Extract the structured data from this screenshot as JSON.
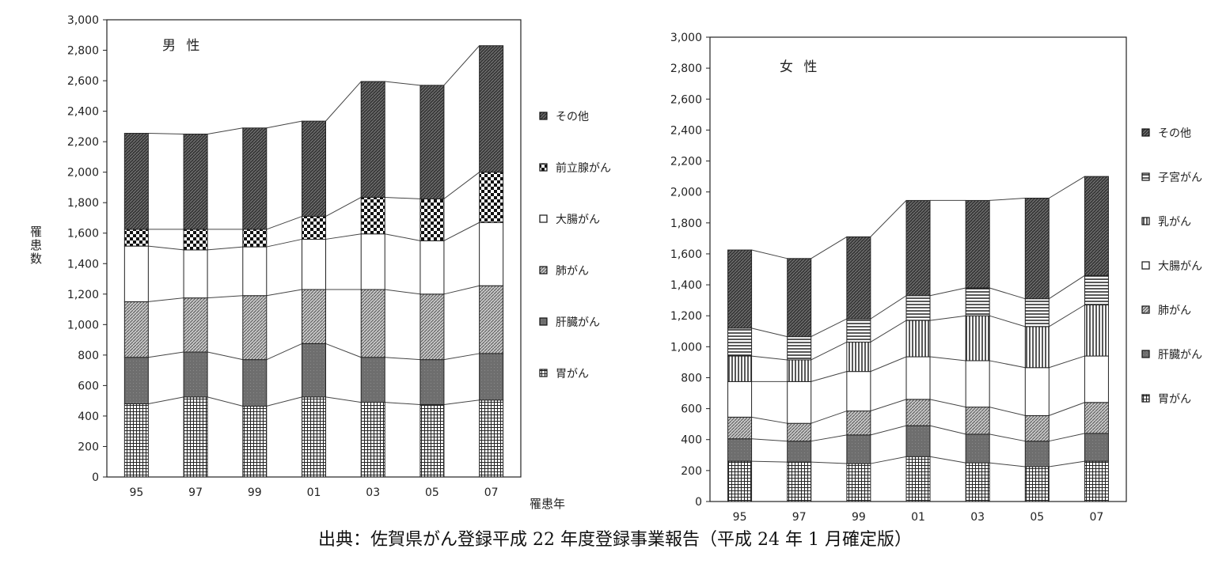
{
  "source": "出典：佐賀県がん登録平成 22 年度登録事業報告（平成 24 年 1 月確定版）",
  "chart_data": [
    {
      "type": "bar",
      "stacked": true,
      "title": "男 性",
      "ylabel": "罹患数",
      "xlabel": "罹患年",
      "ylim": [
        0,
        3000
      ],
      "yticks": [
        "0",
        "200",
        "400",
        "600",
        "800",
        "1,000",
        "1,200",
        "1,400",
        "1,600",
        "1,800",
        "2,000",
        "2,200",
        "2,400",
        "2,600",
        "2,800",
        "3,000"
      ],
      "categories": [
        "95",
        "97",
        "99",
        "01",
        "03",
        "05",
        "07"
      ],
      "legend_position": "right",
      "series": [
        {
          "name": "胃がん",
          "pattern": "grid",
          "values": [
            480,
            525,
            465,
            525,
            490,
            475,
            505
          ]
        },
        {
          "name": "肝臓がん",
          "pattern": "solid-gray",
          "values": [
            305,
            295,
            305,
            350,
            295,
            295,
            305
          ]
        },
        {
          "name": "肺がん",
          "pattern": "diagonal",
          "values": [
            365,
            355,
            420,
            355,
            445,
            430,
            445
          ]
        },
        {
          "name": "大腸がん",
          "pattern": "white",
          "values": [
            365,
            315,
            320,
            330,
            365,
            350,
            415
          ]
        },
        {
          "name": "前立腺がん",
          "pattern": "check",
          "values": [
            110,
            135,
            115,
            150,
            240,
            275,
            330
          ]
        },
        {
          "name": "その他",
          "pattern": "dark-hatch",
          "values": [
            630,
            625,
            665,
            625,
            760,
            745,
            830
          ]
        }
      ]
    },
    {
      "type": "bar",
      "stacked": true,
      "title": "女 性",
      "ylim": [
        0,
        3000
      ],
      "yticks": [
        "0",
        "200",
        "400",
        "600",
        "800",
        "1,000",
        "1,200",
        "1,400",
        "1,600",
        "1,800",
        "2,000",
        "2,200",
        "2,400",
        "2,600",
        "2,800",
        "3,000"
      ],
      "categories": [
        "95",
        "97",
        "99",
        "01",
        "03",
        "05",
        "07"
      ],
      "legend_position": "right",
      "series": [
        {
          "name": "胃がん",
          "pattern": "grid",
          "values": [
            260,
            255,
            245,
            290,
            250,
            225,
            260
          ]
        },
        {
          "name": "肝臓がん",
          "pattern": "solid-gray",
          "values": [
            145,
            135,
            185,
            200,
            185,
            165,
            180
          ]
        },
        {
          "name": "肺がん",
          "pattern": "diagonal",
          "values": [
            140,
            115,
            155,
            170,
            175,
            165,
            200
          ]
        },
        {
          "name": "大腸がん",
          "pattern": "white",
          "values": [
            230,
            270,
            255,
            275,
            300,
            310,
            300
          ]
        },
        {
          "name": "乳がん",
          "pattern": "vertical",
          "values": [
            165,
            140,
            190,
            235,
            290,
            265,
            330
          ]
        },
        {
          "name": "子宮がん",
          "pattern": "horizontal",
          "values": [
            180,
            150,
            150,
            160,
            180,
            180,
            190
          ]
        },
        {
          "name": "その他",
          "pattern": "dark-hatch",
          "values": [
            505,
            505,
            530,
            615,
            565,
            650,
            640
          ]
        }
      ]
    }
  ]
}
